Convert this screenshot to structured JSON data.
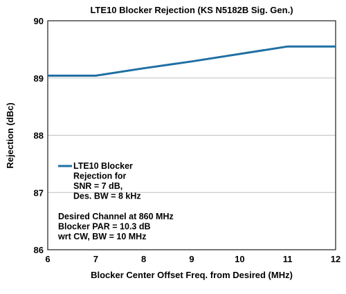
{
  "chart_data": {
    "type": "line",
    "title": "LTE10 Blocker Rejection (KS N5182B Sig. Gen.)",
    "xlabel": "Blocker Center Offset Freq. from Desired (MHz)",
    "ylabel": "Rejection (dBc)",
    "xlim": [
      6,
      12
    ],
    "ylim": [
      86,
      90
    ],
    "xticks": [
      "6",
      "7",
      "8",
      "9",
      "10",
      "11",
      "12"
    ],
    "yticks": [
      "86",
      "87",
      "88",
      "89",
      "90"
    ],
    "grid": "horizontal",
    "series": [
      {
        "name_lines": [
          "LTE10 Blocker",
          "Rejection for",
          "SNR = 7 dB,",
          "Des. BW = 8 kHz"
        ],
        "color": "#1f6fa3",
        "x": [
          6,
          7,
          8,
          9,
          10,
          11,
          12
        ],
        "y": [
          89.04,
          89.04,
          89.17,
          89.29,
          89.42,
          89.55,
          89.55
        ]
      }
    ],
    "annotation_lines": [
      "Desired Channel at 860 MHz",
      "Blocker PAR = 10.3 dB",
      "wrt CW, BW = 10 MHz"
    ],
    "legend_position": "lower-left"
  }
}
